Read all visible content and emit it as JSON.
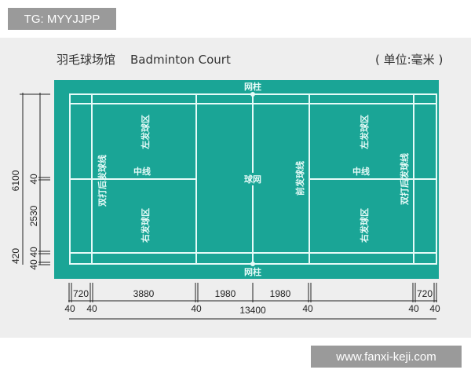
{
  "watermark_top": "TG: MYYJJPP",
  "watermark_bottom": "www.fanxi-keji.com",
  "title_cn": "羽毛球场馆",
  "title_en": "Badminton Court",
  "unit": "( 单位:毫米 )",
  "colors": {
    "court": "#1aa596",
    "lines": "#e6fbf8",
    "panel": "#eeeeee"
  },
  "court_labels": {
    "net_post_top": "网柱",
    "net_post_bottom": "网柱",
    "net": "球网",
    "doubles_back_left": "双打后发球线",
    "doubles_back_right": "双打后发球线",
    "left_service_left": "左发球区",
    "right_service_left": "右发球区",
    "left_service_right": "左发球区",
    "right_service_right": "右发球区",
    "center_left": "中线",
    "center_right": "中线",
    "front_service": "前发球线"
  },
  "vertical_dims": {
    "total": "6100",
    "side": "420",
    "mid": "2530",
    "line1": "40",
    "line2": "40",
    "line3": "40"
  },
  "horizontal_dims": {
    "a": "720",
    "b": "3880",
    "c": "1980",
    "d": "1980",
    "e": "720",
    "total": "13400",
    "l1": "40",
    "l2": "40",
    "l3": "40",
    "l4": "40",
    "l5": "40",
    "l6": "40"
  }
}
